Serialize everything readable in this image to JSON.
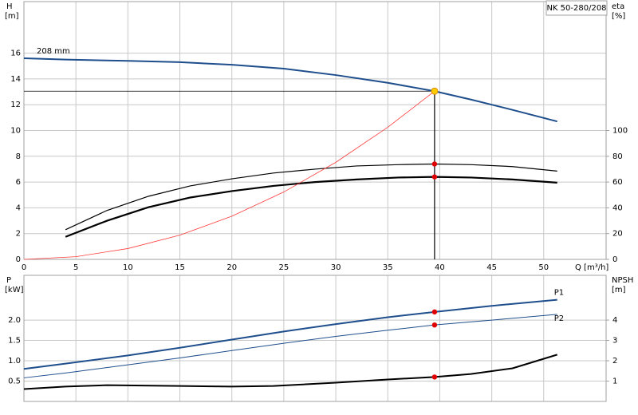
{
  "chart_data": [
    {
      "type": "line",
      "title": "NK 50-280/208",
      "ylabel": "H",
      "yunit": "[m]",
      "y2label": "eta",
      "y2unit": "[%]",
      "xlabel": "Q [m³/h]",
      "xlim": [
        0,
        56
      ],
      "xticks": [
        0,
        5,
        10,
        15,
        20,
        25,
        30,
        35,
        40,
        45,
        50
      ],
      "ylim": [
        0,
        20
      ],
      "yticks": [
        0,
        2,
        4,
        6,
        8,
        10,
        12,
        14,
        16
      ],
      "y2lim": [
        0,
        200
      ],
      "y2ticks": [
        0,
        20,
        40,
        60,
        80,
        100
      ],
      "grid": true,
      "series": [
        {
          "name": "208 mm",
          "color": "#1f4e8c",
          "line_width": 2,
          "x": [
            0,
            4,
            10,
            15,
            20,
            25,
            30,
            35,
            39.5,
            43,
            47,
            51.3
          ],
          "values": [
            15.6,
            15.5,
            15.4,
            15.3,
            15.1,
            14.8,
            14.3,
            13.7,
            13.05,
            12.4,
            11.6,
            10.7
          ]
        },
        {
          "color": "#000000",
          "line_width": 1.2,
          "axis": "y2",
          "x": [
            4,
            8,
            12,
            16,
            20,
            24,
            28,
            32,
            36,
            39.5,
            43,
            47,
            51.3
          ],
          "values": [
            23,
            38,
            49,
            57,
            62.5,
            67,
            70,
            72.5,
            73.5,
            74,
            73.5,
            72,
            68.5
          ]
        },
        {
          "color": "#000000",
          "line_width": 2.2,
          "axis": "y2",
          "x": [
            4,
            8,
            12,
            16,
            20,
            24,
            28,
            32,
            36,
            39.5,
            43,
            47,
            51.3
          ],
          "values": [
            17.5,
            30,
            40.5,
            48,
            53,
            57,
            60,
            62,
            63.5,
            64,
            63.5,
            62,
            59.5
          ]
        },
        {
          "color": "#ff3b3b",
          "line_width": 0.8,
          "x": [
            0,
            5,
            10,
            15,
            20,
            25,
            30,
            35,
            39.5
          ],
          "values": [
            0,
            0.21,
            0.84,
            1.88,
            3.35,
            5.23,
            7.53,
            10.25,
            13.05
          ]
        }
      ],
      "operating_point": {
        "x": 39.5,
        "y": 13.05,
        "color": "#ffcc00"
      },
      "point_color": "#e00000"
    },
    {
      "type": "line",
      "ylabel": "P",
      "yunit": "[kW]",
      "y2label": "NPSH",
      "y2unit": "[m]",
      "xlim": [
        0,
        56
      ],
      "xticks": [
        0,
        5,
        10,
        15,
        20,
        25,
        30,
        35,
        40,
        45,
        50
      ],
      "ylim": [
        0,
        3.1
      ],
      "yticks": [
        0.5,
        {
          "value": 1,
          "label": "1.0"
        },
        1.5,
        {
          "value": 2,
          "label": "2.0"
        }
      ],
      "y2lim": [
        0,
        6.2
      ],
      "y2ticks": [
        1,
        2,
        3,
        4
      ],
      "grid": true,
      "series": [
        {
          "name": "P1",
          "color": "#1f4e8c",
          "line_width": 2,
          "x": [
            0,
            4,
            10,
            15,
            20,
            25,
            30,
            35,
            39.5,
            45,
            51.3
          ],
          "values": [
            0.8,
            0.93,
            1.13,
            1.32,
            1.52,
            1.72,
            1.9,
            2.07,
            2.2,
            2.35,
            2.5
          ]
        },
        {
          "name": "P2",
          "color": "#1f4e8c",
          "line_width": 1,
          "x": [
            0,
            4,
            10,
            15,
            20,
            25,
            30,
            35,
            39.5,
            45,
            51.3
          ],
          "values": [
            0.58,
            0.7,
            0.9,
            1.07,
            1.25,
            1.43,
            1.6,
            1.75,
            1.88,
            2.0,
            2.14
          ]
        },
        {
          "color": "#000000",
          "line_width": 2,
          "axis": "y2",
          "x": [
            0,
            4,
            8,
            15,
            20,
            24,
            30,
            35,
            39.5,
            43,
            47,
            51.3
          ],
          "values": [
            0.61,
            0.73,
            0.8,
            0.76,
            0.73,
            0.76,
            0.92,
            1.08,
            1.2,
            1.35,
            1.63,
            2.3
          ]
        }
      ],
      "operating_x": 39.5,
      "point_color": "#e00000"
    }
  ]
}
